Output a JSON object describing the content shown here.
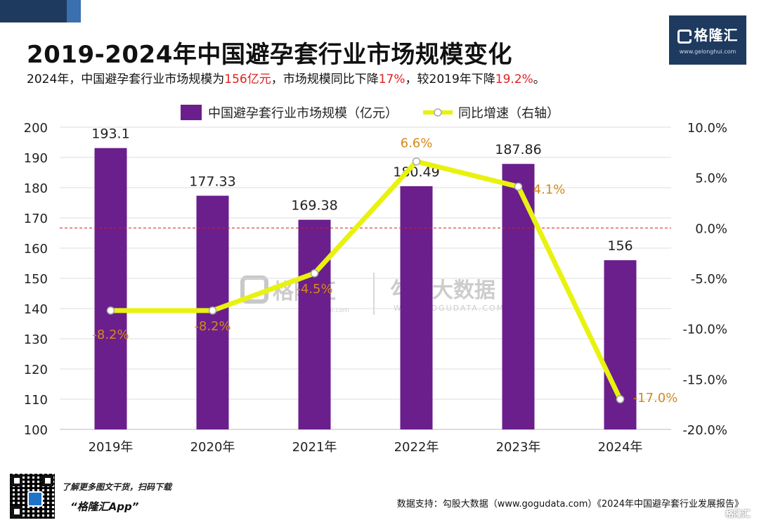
{
  "header": {
    "title": "2019-2024年中国避孕套行业市场规模变化",
    "subtitle_parts": {
      "p1": "2024年，中国避孕套行业市场规模为",
      "v1": "156亿元",
      "p2": "，市场规模同比下降",
      "v2": "17%",
      "p3": "，较2019年下降",
      "v3": "19.2%",
      "p4": "。"
    }
  },
  "logo": {
    "name": "格隆汇",
    "url": "www.gelonghui.com"
  },
  "watermark": {
    "left_name": "格隆汇",
    "left_url": "gelonghui.com",
    "right_name": "勾股大数据",
    "right_url": "WWW.GOGUDATA.COM"
  },
  "chart_data": {
    "type": "bar",
    "categories": [
      "2019年",
      "2020年",
      "2021年",
      "2022年",
      "2023年",
      "2024年"
    ],
    "series": [
      {
        "name": "中国避孕套行业市场规模（亿元）",
        "kind": "bar",
        "axis": "left",
        "values": [
          193.1,
          177.33,
          169.38,
          180.49,
          187.86,
          156
        ],
        "labels": [
          "193.1",
          "177.33",
          "169.38",
          "180.49",
          "187.86",
          "156"
        ]
      },
      {
        "name": "同比增速（右轴）",
        "kind": "line",
        "axis": "right",
        "values": [
          -8.2,
          -8.2,
          -4.5,
          6.6,
          4.1,
          -17.0
        ],
        "labels": [
          "-8.2%",
          "-8.2%",
          "-4.5%",
          "6.6%",
          "4.1%",
          "-17.0%"
        ]
      }
    ],
    "left_axis": {
      "min": 100,
      "max": 200,
      "step": 10,
      "ticks": [
        "100",
        "110",
        "120",
        "130",
        "140",
        "150",
        "160",
        "170",
        "180",
        "190",
        "200"
      ]
    },
    "right_axis": {
      "min": -20,
      "max": 10,
      "step": 5,
      "ticks": [
        "-20.0%",
        "-15.0%",
        "-10.0%",
        "-5.0%",
        "0.0%",
        "5.0%",
        "10.0%"
      ]
    },
    "reference_line": {
      "axis": "right",
      "value": 0,
      "style": "dashed"
    },
    "colors": {
      "bar": "#6a1f8c",
      "line": "#e8f20f",
      "line_label": "#d4891a",
      "ref_line": "#d42020",
      "grid": "#dddddd"
    },
    "legend_position": "top"
  },
  "footer": {
    "promo_line1": "了解更多图文干货，扫码下载",
    "promo_line2": "“格隆汇App”",
    "source": "数据支持：勾股大数据（www.gogudata.com）《2024年中国避孕套行业发展报告》",
    "corner_mark": "格隆汇"
  }
}
